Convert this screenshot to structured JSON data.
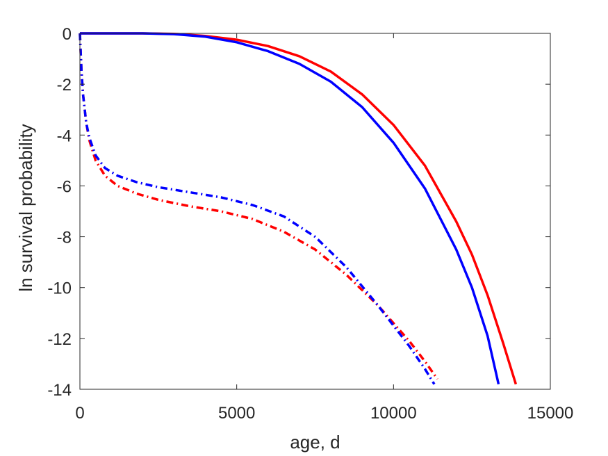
{
  "chart_data": {
    "type": "line",
    "xlabel": "age, d",
    "ylabel": "ln survival probability",
    "xlim": [
      0,
      15000
    ],
    "ylim": [
      -14,
      0
    ],
    "xticks": [
      0,
      5000,
      10000,
      15000
    ],
    "yticks": [
      0,
      -2,
      -4,
      -6,
      -8,
      -10,
      -12,
      -14
    ],
    "grid": false,
    "legend": "none",
    "series": [
      {
        "color": "#ff0000",
        "style": "solid",
        "x": [
          0,
          1000,
          2000,
          3000,
          4000,
          5000,
          6000,
          7000,
          8000,
          9000,
          10000,
          11000,
          12000,
          12500,
          13000,
          13500,
          13900
        ],
        "y": [
          0,
          0,
          0,
          -0.02,
          -0.1,
          -0.25,
          -0.5,
          -0.9,
          -1.5,
          -2.4,
          -3.6,
          -5.2,
          -7.4,
          -8.7,
          -10.3,
          -12.2,
          -13.8
        ]
      },
      {
        "color": "#0000ff",
        "style": "solid",
        "x": [
          0,
          1000,
          2000,
          3000,
          4000,
          5000,
          6000,
          7000,
          8000,
          9000,
          10000,
          11000,
          12000,
          12500,
          13000,
          13350
        ],
        "y": [
          0,
          0,
          0,
          -0.03,
          -0.13,
          -0.35,
          -0.7,
          -1.2,
          -1.9,
          -2.9,
          -4.3,
          -6.1,
          -8.5,
          -10.0,
          -11.9,
          -13.8
        ]
      },
      {
        "color": "#ff0000",
        "style": "dashdot",
        "x": [
          0,
          50,
          100,
          200,
          300,
          500,
          800,
          1200,
          1800,
          2500,
          3500,
          4500,
          5500,
          6500,
          7500,
          8500,
          9500,
          10500,
          11000,
          11400
        ],
        "y": [
          0,
          -1.5,
          -2.4,
          -3.5,
          -4.2,
          -5.0,
          -5.6,
          -6.0,
          -6.3,
          -6.55,
          -6.8,
          -7.0,
          -7.3,
          -7.8,
          -8.5,
          -9.5,
          -10.7,
          -12.1,
          -12.9,
          -13.6
        ]
      },
      {
        "color": "#0000ff",
        "style": "dashdot",
        "x": [
          0,
          50,
          100,
          200,
          300,
          500,
          800,
          1200,
          1800,
          2500,
          3500,
          4500,
          5500,
          6500,
          7500,
          8500,
          9500,
          10500,
          11000,
          11300
        ],
        "y": [
          0,
          -1.5,
          -2.4,
          -3.5,
          -4.1,
          -4.8,
          -5.3,
          -5.6,
          -5.85,
          -6.05,
          -6.25,
          -6.45,
          -6.75,
          -7.2,
          -8.0,
          -9.2,
          -10.7,
          -12.3,
          -13.2,
          -13.8
        ]
      }
    ]
  }
}
